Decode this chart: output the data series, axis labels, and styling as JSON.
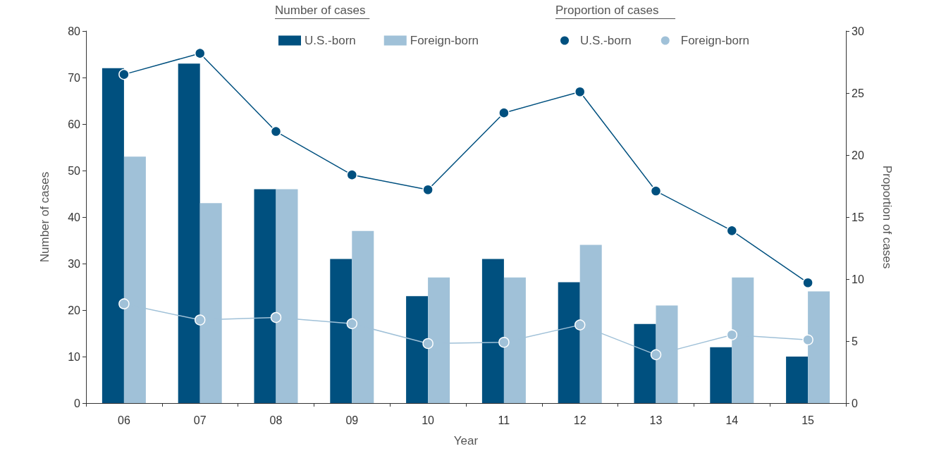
{
  "chart_data": {
    "type": "bar",
    "xlabel": "Year",
    "ylabel": "Number of cases",
    "y2label": "Proportion of cases",
    "categories": [
      "06",
      "07",
      "08",
      "09",
      "10",
      "11",
      "12",
      "13",
      "14",
      "15"
    ],
    "series": [
      {
        "name": "U.S.-born",
        "color": "#00507f",
        "values": [
          72,
          73,
          46,
          31,
          23,
          31,
          26,
          17,
          12,
          10
        ]
      },
      {
        "name": "Foreign-born",
        "color": "#a0c1d8",
        "values": [
          53,
          43,
          46,
          37,
          27,
          27,
          34,
          21,
          27,
          24
        ]
      },
      {
        "name": "U.S.-born",
        "type": "line",
        "axis": "y2",
        "color": "#00507f",
        "values": [
          26.5,
          28.2,
          21.9,
          18.4,
          17.2,
          23.4,
          25.1,
          17.1,
          13.9,
          9.7
        ]
      },
      {
        "name": "Foreign-born",
        "type": "line",
        "axis": "y2",
        "color": "#a0c1d8",
        "values": [
          8.0,
          6.7,
          6.9,
          6.4,
          4.8,
          4.9,
          6.3,
          3.9,
          5.5,
          5.1
        ]
      }
    ],
    "ylim": [
      0,
      80
    ],
    "yticks": [
      0,
      10,
      20,
      30,
      40,
      50,
      60,
      70,
      80
    ],
    "y2lim": [
      0,
      30
    ],
    "y2ticks": [
      0,
      5,
      10,
      15,
      20,
      25,
      30
    ],
    "annotations": [
      "Number of cases",
      "Proportion of cases"
    ],
    "legend": "top",
    "grid": false,
    "marker": "circle",
    "line_style": "solid"
  }
}
